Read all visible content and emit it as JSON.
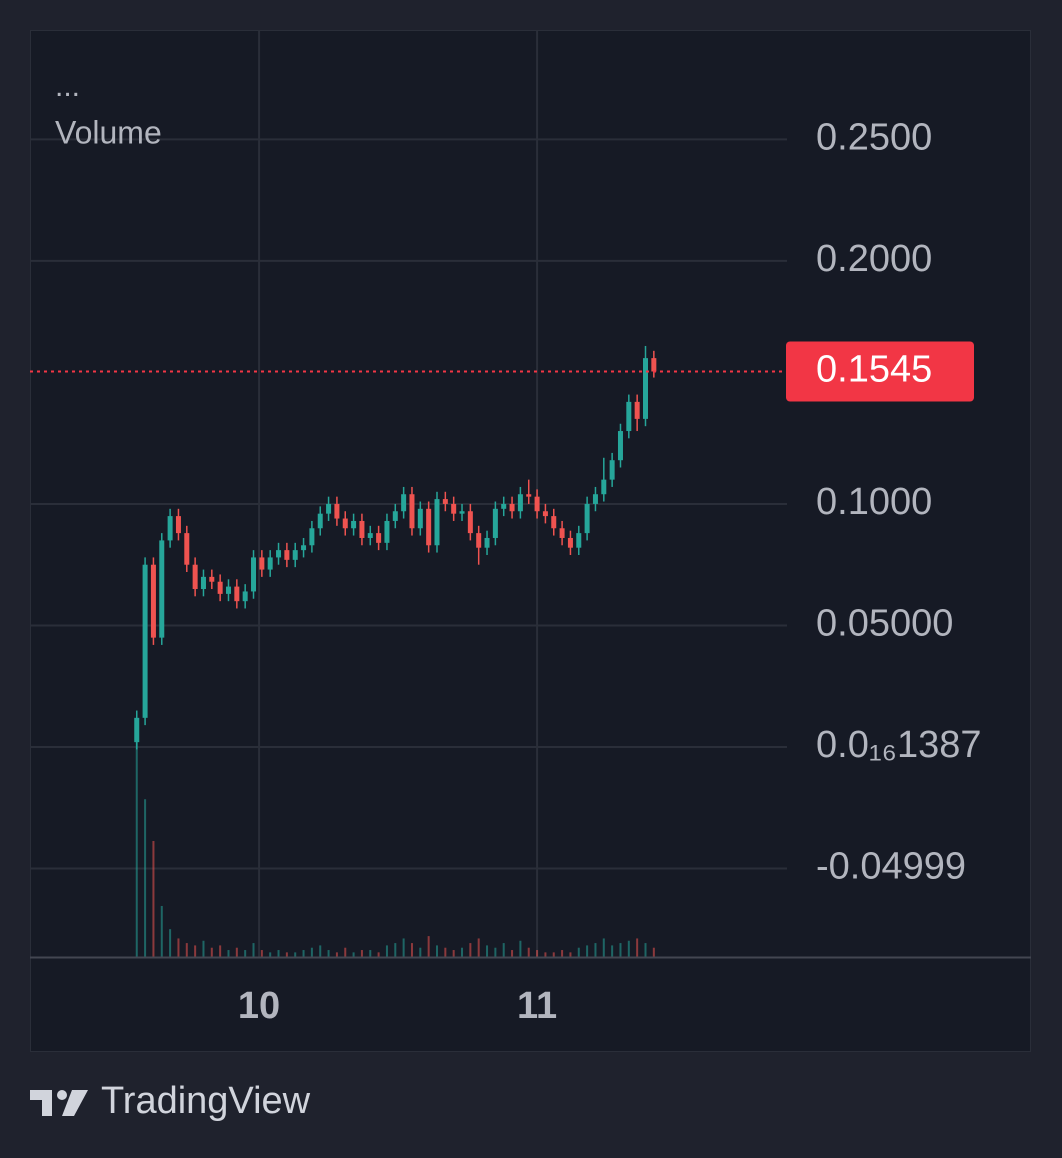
{
  "chart_data": {
    "type": "candlestick",
    "legend_text": "...",
    "volume_label": "Volume",
    "x": [
      9.56,
      9.59,
      9.62,
      9.65,
      9.68,
      9.71,
      9.74,
      9.77,
      9.8,
      9.83,
      9.86,
      9.89,
      9.92,
      9.95,
      9.98,
      10.01,
      10.04,
      10.07,
      10.1,
      10.13,
      10.16,
      10.19,
      10.22,
      10.25,
      10.28,
      10.31,
      10.34,
      10.37,
      10.4,
      10.43,
      10.46,
      10.49,
      10.52,
      10.55,
      10.58,
      10.61,
      10.64,
      10.67,
      10.7,
      10.73,
      10.76,
      10.79,
      10.82,
      10.85,
      10.88,
      10.91,
      10.94,
      10.97,
      11.0,
      11.03,
      11.06,
      11.09,
      11.12,
      11.15,
      11.18,
      11.21,
      11.24,
      11.27,
      11.3,
      11.33,
      11.36,
      11.39,
      11.42
    ],
    "open": [
      0.002,
      0.012,
      0.075,
      0.045,
      0.085,
      0.095,
      0.088,
      0.075,
      0.065,
      0.07,
      0.068,
      0.063,
      0.066,
      0.06,
      0.064,
      0.078,
      0.073,
      0.078,
      0.081,
      0.077,
      0.081,
      0.083,
      0.09,
      0.096,
      0.1,
      0.094,
      0.09,
      0.093,
      0.086,
      0.088,
      0.084,
      0.093,
      0.097,
      0.104,
      0.09,
      0.098,
      0.083,
      0.102,
      0.1,
      0.096,
      0.097,
      0.088,
      0.082,
      0.086,
      0.098,
      0.1,
      0.097,
      0.104,
      0.103,
      0.097,
      0.095,
      0.09,
      0.086,
      0.082,
      0.088,
      0.1,
      0.104,
      0.11,
      0.118,
      0.13,
      0.142,
      0.135,
      0.16
    ],
    "high": [
      0.015,
      0.078,
      0.078,
      0.088,
      0.098,
      0.098,
      0.091,
      0.078,
      0.073,
      0.073,
      0.071,
      0.069,
      0.069,
      0.067,
      0.081,
      0.081,
      0.081,
      0.084,
      0.084,
      0.084,
      0.086,
      0.093,
      0.099,
      0.103,
      0.103,
      0.097,
      0.096,
      0.096,
      0.091,
      0.091,
      0.096,
      0.1,
      0.107,
      0.107,
      0.101,
      0.101,
      0.105,
      0.105,
      0.103,
      0.1,
      0.1,
      0.091,
      0.089,
      0.101,
      0.103,
      0.103,
      0.107,
      0.11,
      0.106,
      0.1,
      0.098,
      0.093,
      0.089,
      0.091,
      0.103,
      0.107,
      0.119,
      0.121,
      0.133,
      0.145,
      0.145,
      0.165,
      0.163
    ],
    "low": [
      -0.001,
      0.009,
      0.042,
      0.042,
      0.082,
      0.085,
      0.072,
      0.062,
      0.062,
      0.065,
      0.06,
      0.06,
      0.057,
      0.057,
      0.061,
      0.07,
      0.07,
      0.075,
      0.074,
      0.074,
      0.078,
      0.08,
      0.087,
      0.093,
      0.091,
      0.087,
      0.087,
      0.083,
      0.083,
      0.081,
      0.081,
      0.09,
      0.094,
      0.087,
      0.087,
      0.08,
      0.08,
      0.097,
      0.093,
      0.093,
      0.085,
      0.075,
      0.079,
      0.083,
      0.095,
      0.094,
      0.094,
      0.1,
      0.094,
      0.092,
      0.087,
      0.083,
      0.079,
      0.079,
      0.085,
      0.097,
      0.101,
      0.107,
      0.115,
      0.127,
      0.13,
      0.132,
      0.152
    ],
    "close": [
      0.012,
      0.075,
      0.045,
      0.085,
      0.095,
      0.088,
      0.075,
      0.065,
      0.07,
      0.068,
      0.063,
      0.066,
      0.06,
      0.064,
      0.078,
      0.073,
      0.078,
      0.081,
      0.077,
      0.081,
      0.083,
      0.09,
      0.096,
      0.1,
      0.094,
      0.09,
      0.093,
      0.086,
      0.088,
      0.084,
      0.093,
      0.097,
      0.104,
      0.09,
      0.098,
      0.083,
      0.102,
      0.1,
      0.096,
      0.097,
      0.088,
      0.082,
      0.086,
      0.098,
      0.1,
      0.097,
      0.104,
      0.103,
      0.097,
      0.095,
      0.09,
      0.086,
      0.082,
      0.088,
      0.1,
      0.104,
      0.11,
      0.118,
      0.13,
      0.142,
      0.135,
      0.16,
      0.1545
    ],
    "volume": [
      100,
      68,
      50,
      22,
      12,
      8,
      6,
      5,
      7,
      4,
      5,
      3,
      4,
      3,
      6,
      3,
      2,
      3,
      2,
      2,
      3,
      4,
      5,
      3,
      2,
      4,
      2,
      3,
      3,
      2,
      5,
      6,
      8,
      6,
      4,
      9,
      5,
      4,
      3,
      4,
      6,
      8,
      5,
      4,
      6,
      3,
      7,
      4,
      3,
      2,
      2,
      3,
      2,
      4,
      5,
      6,
      8,
      5,
      6,
      7,
      8,
      6,
      4
    ],
    "up_color": "#26a69a",
    "down_color": "#ef5350",
    "xlim": [
      9.176,
      11.899
    ],
    "xticks": [
      10,
      11
    ],
    "ylim": [
      -0.0864,
      0.295
    ],
    "yticks": [
      {
        "value": 0.25,
        "label": "0.2500"
      },
      {
        "value": 0.2,
        "label": "0.2000"
      },
      {
        "value": 0.1,
        "label": "0.1000"
      },
      {
        "value": 0.05,
        "label": "0.05000"
      },
      {
        "value": 1.387e-16,
        "label": "0.0₁₆1387"
      },
      {
        "value": -0.04999,
        "label": "-0.04999"
      }
    ],
    "grid": true,
    "last_price": 0.1545,
    "last_price_color": "#f23645"
  },
  "brand": "TradingView"
}
